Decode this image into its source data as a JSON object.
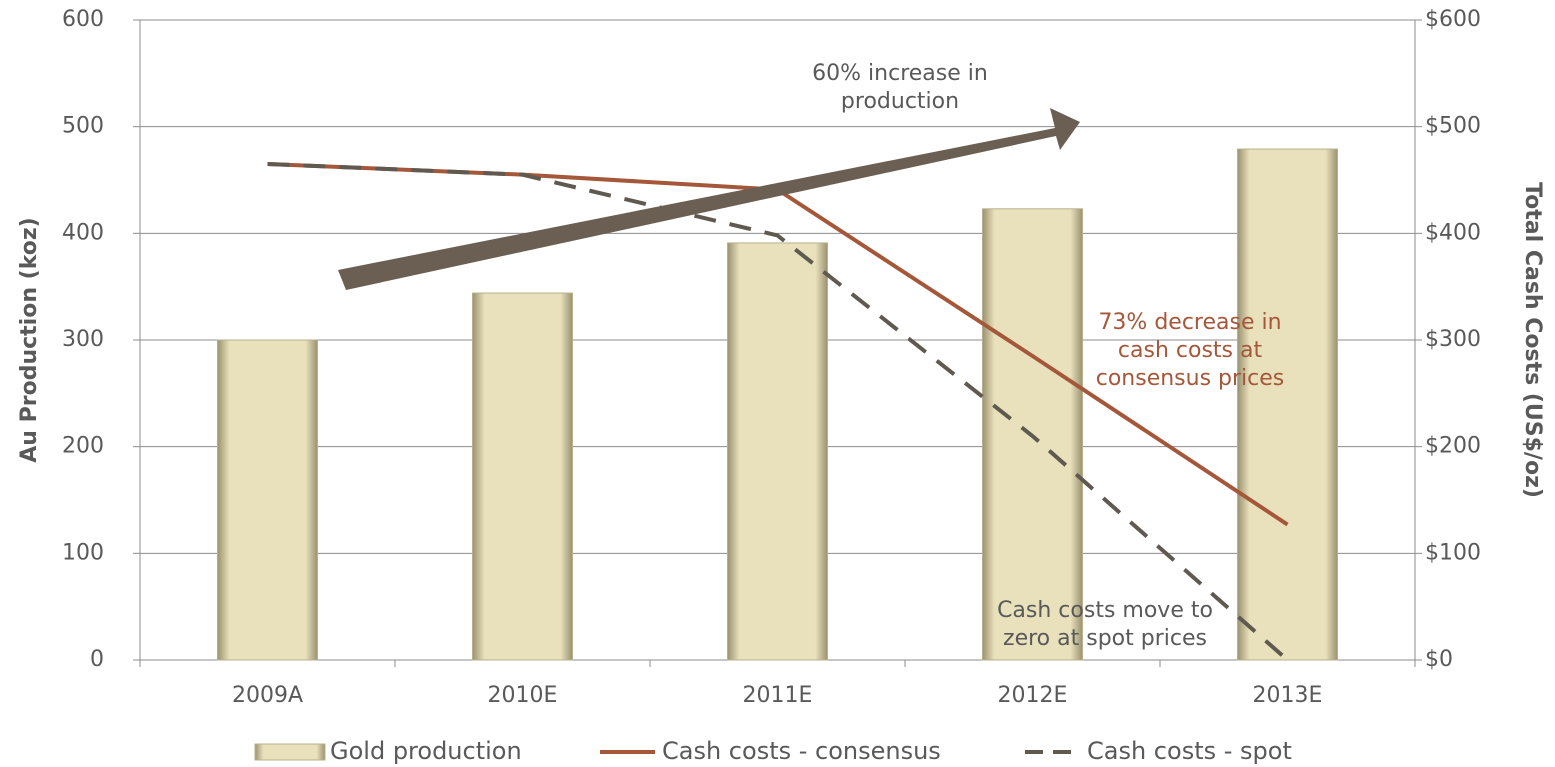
{
  "chart_data": {
    "type": "bar",
    "categories": [
      "2009A",
      "2010E",
      "2011E",
      "2012E",
      "2013E"
    ],
    "series": [
      {
        "name": "Gold production",
        "type": "bar",
        "color": "#e8e1bb",
        "values": [
          300,
          344,
          391,
          423,
          479
        ]
      },
      {
        "name": "Cash costs - consensus",
        "type": "line",
        "axis": "y2",
        "color": "#a5573a",
        "values": [
          465,
          455,
          441,
          285,
          127
        ]
      },
      {
        "name": "Cash costs - spot",
        "type": "line",
        "axis": "y2",
        "dashed": true,
        "color": "#5f5950",
        "values": [
          465,
          455,
          398,
          210,
          0
        ]
      }
    ],
    "ylabel": "Au Production (koz)",
    "y2label": "Total Cash Costs (US$/oz)",
    "ylim": [
      0,
      600
    ],
    "yticks": [
      0,
      100,
      200,
      300,
      400,
      500,
      600
    ],
    "y2lim": [
      0,
      600
    ],
    "y2ticks": [
      {
        "value": 0,
        "label": "$0"
      },
      {
        "value": 100,
        "label": "$100"
      },
      {
        "value": 200,
        "label": "$200"
      },
      {
        "value": 300,
        "label": "$300"
      },
      {
        "value": 400,
        "label": "$400"
      },
      {
        "value": 500,
        "label": "$500"
      },
      {
        "value": 600,
        "label": "$600"
      }
    ],
    "grid": true,
    "legend": "bottom",
    "annotations": [
      {
        "lines": [
          "60% increase in",
          "production"
        ],
        "color": "#595959"
      },
      {
        "lines": [
          "73% decrease in",
          "cash costs at",
          "consensus prices"
        ],
        "color": "#a5573a"
      },
      {
        "lines": [
          "Cash costs move to",
          "zero at spot prices"
        ],
        "color": "#595959"
      }
    ]
  }
}
